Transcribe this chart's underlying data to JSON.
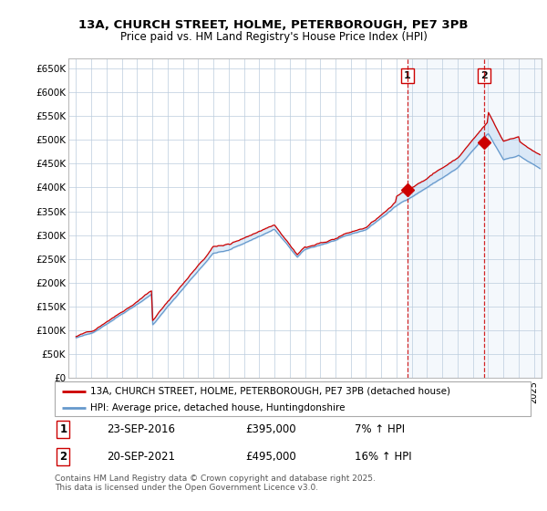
{
  "title1": "13A, CHURCH STREET, HOLME, PETERBOROUGH, PE7 3PB",
  "title2": "Price paid vs. HM Land Registry's House Price Index (HPI)",
  "ylabel_ticks": [
    "£0",
    "£50K",
    "£100K",
    "£150K",
    "£200K",
    "£250K",
    "£300K",
    "£350K",
    "£400K",
    "£450K",
    "£500K",
    "£550K",
    "£600K",
    "£650K"
  ],
  "ytick_values": [
    0,
    50000,
    100000,
    150000,
    200000,
    250000,
    300000,
    350000,
    400000,
    450000,
    500000,
    550000,
    600000,
    650000
  ],
  "ylim": [
    0,
    670000
  ],
  "legend_line1": "13A, CHURCH STREET, HOLME, PETERBOROUGH, PE7 3PB (detached house)",
  "legend_line2": "HPI: Average price, detached house, Huntingdonshire",
  "line1_color": "#cc0000",
  "line2_color": "#6699cc",
  "fill_color": "#cce0f0",
  "annotation1_date": "23-SEP-2016",
  "annotation1_price": "£395,000",
  "annotation1_hpi": "7% ↑ HPI",
  "annotation2_date": "20-SEP-2021",
  "annotation2_price": "£495,000",
  "annotation2_hpi": "16% ↑ HPI",
  "footnote": "Contains HM Land Registry data © Crown copyright and database right 2025.\nThis data is licensed under the Open Government Licence v3.0.",
  "sale1_x": 2016.72,
  "sale1_y": 395000,
  "sale2_x": 2021.72,
  "sale2_y": 495000,
  "background_color": "#ffffff",
  "grid_color": "#bbccdd",
  "xmin": 1995.0,
  "xmax": 2025.5
}
